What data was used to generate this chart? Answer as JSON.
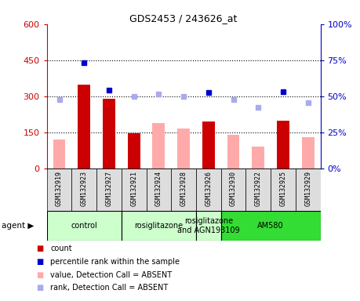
{
  "title": "GDS2453 / 243626_at",
  "samples": [
    "GSM132919",
    "GSM132923",
    "GSM132927",
    "GSM132921",
    "GSM132924",
    "GSM132928",
    "GSM132926",
    "GSM132930",
    "GSM132922",
    "GSM132925",
    "GSM132929"
  ],
  "count_values": [
    null,
    350,
    290,
    145,
    null,
    null,
    195,
    null,
    null,
    200,
    null
  ],
  "value_absent": [
    120,
    null,
    null,
    null,
    190,
    165,
    null,
    140,
    90,
    null,
    130
  ],
  "percentile_rank": [
    null,
    440,
    325,
    null,
    null,
    null,
    315,
    null,
    null,
    320,
    null
  ],
  "rank_absent": [
    285,
    null,
    null,
    300,
    310,
    300,
    null,
    285,
    255,
    null,
    275
  ],
  "agent_groups": [
    {
      "label": "control",
      "start": 0,
      "end": 3,
      "color": "#ccffcc"
    },
    {
      "label": "rosiglitazone",
      "start": 3,
      "end": 6,
      "color": "#ccffcc"
    },
    {
      "label": "rosiglitazone\nand AGN193109",
      "start": 6,
      "end": 7,
      "color": "#ccffcc"
    },
    {
      "label": "AM580",
      "start": 7,
      "end": 11,
      "color": "#33dd33"
    }
  ],
  "left_ylim": [
    0,
    600
  ],
  "right_ylim": [
    0,
    100
  ],
  "left_yticks": [
    0,
    150,
    300,
    450,
    600
  ],
  "right_yticks": [
    0,
    25,
    50,
    75,
    100
  ],
  "left_ytick_labels": [
    "0",
    "150",
    "300",
    "450",
    "600"
  ],
  "right_ytick_labels": [
    "0%",
    "25%",
    "50%",
    "75%",
    "100%"
  ],
  "count_color": "#cc0000",
  "percentile_color": "#0000cc",
  "value_absent_color": "#ffaaaa",
  "rank_absent_color": "#aaaaee",
  "bg_color": "#ffffff",
  "plot_bg_color": "#ffffff",
  "gsm_cell_color": "#dddddd",
  "bar_width": 0.5,
  "agent_label": "agent"
}
